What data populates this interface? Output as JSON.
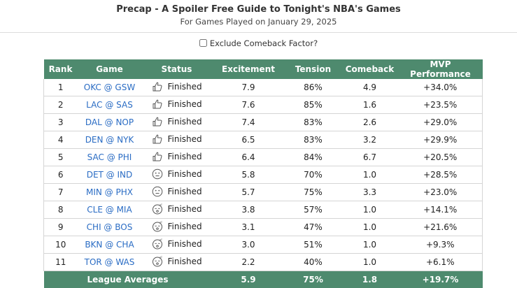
{
  "header": {
    "title": "Precap - A Spoiler Free Guide to Tonight's NBA's Games",
    "subtitle": "For Games Played on January 29, 2025"
  },
  "options": {
    "exclude_comeback_label": "Exclude Comeback Factor?",
    "exclude_comeback_checked": false
  },
  "table": {
    "columns": [
      "Rank",
      "Game",
      "Status",
      "Excitement",
      "Tension",
      "Comeback",
      "MVP Performance"
    ],
    "rows": [
      {
        "rank": "1",
        "game": "OKC @ GSW",
        "status_icon": "thumbs-up-icon",
        "status": "Finished",
        "excitement": "7.9",
        "tension": "86%",
        "comeback": "4.9",
        "mvp": "+34.0%"
      },
      {
        "rank": "2",
        "game": "LAC @ SAS",
        "status_icon": "thumbs-up-icon",
        "status": "Finished",
        "excitement": "7.6",
        "tension": "85%",
        "comeback": "1.6",
        "mvp": "+23.5%"
      },
      {
        "rank": "3",
        "game": "DAL @ NOP",
        "status_icon": "thumbs-up-icon",
        "status": "Finished",
        "excitement": "7.4",
        "tension": "83%",
        "comeback": "2.6",
        "mvp": "+29.0%"
      },
      {
        "rank": "4",
        "game": "DEN @ NYK",
        "status_icon": "thumbs-up-icon",
        "status": "Finished",
        "excitement": "6.5",
        "tension": "83%",
        "comeback": "3.2",
        "mvp": "+29.9%"
      },
      {
        "rank": "5",
        "game": "SAC @ PHI",
        "status_icon": "thumbs-up-icon",
        "status": "Finished",
        "excitement": "6.4",
        "tension": "84%",
        "comeback": "6.7",
        "mvp": "+20.5%"
      },
      {
        "rank": "6",
        "game": "DET @ IND",
        "status_icon": "neutral-face-icon",
        "status": "Finished",
        "excitement": "5.8",
        "tension": "70%",
        "comeback": "1.0",
        "mvp": "+28.5%"
      },
      {
        "rank": "7",
        "game": "MIN @ PHX",
        "status_icon": "neutral-face-icon",
        "status": "Finished",
        "excitement": "5.7",
        "tension": "75%",
        "comeback": "3.3",
        "mvp": "+23.0%"
      },
      {
        "rank": "8",
        "game": "CLE @ MIA",
        "status_icon": "sleepy-face-icon",
        "status": "Finished",
        "excitement": "3.8",
        "tension": "57%",
        "comeback": "1.0",
        "mvp": "+14.1%"
      },
      {
        "rank": "9",
        "game": "CHI @ BOS",
        "status_icon": "sleepy-face-icon",
        "status": "Finished",
        "excitement": "3.1",
        "tension": "47%",
        "comeback": "1.0",
        "mvp": "+21.6%"
      },
      {
        "rank": "10",
        "game": "BKN @ CHA",
        "status_icon": "sleepy-face-icon",
        "status": "Finished",
        "excitement": "3.0",
        "tension": "51%",
        "comeback": "1.0",
        "mvp": "+9.3%"
      },
      {
        "rank": "11",
        "game": "TOR @ WAS",
        "status_icon": "sleepy-face-icon",
        "status": "Finished",
        "excitement": "2.2",
        "tension": "40%",
        "comeback": "1.0",
        "mvp": "+6.1%"
      }
    ],
    "footer": {
      "label": "League Averages",
      "excitement": "5.9",
      "tension": "75%",
      "comeback": "1.8",
      "mvp": "+19.7%"
    }
  },
  "colors": {
    "header_bg": "#4e8a6e",
    "link": "#2a6cc4"
  }
}
